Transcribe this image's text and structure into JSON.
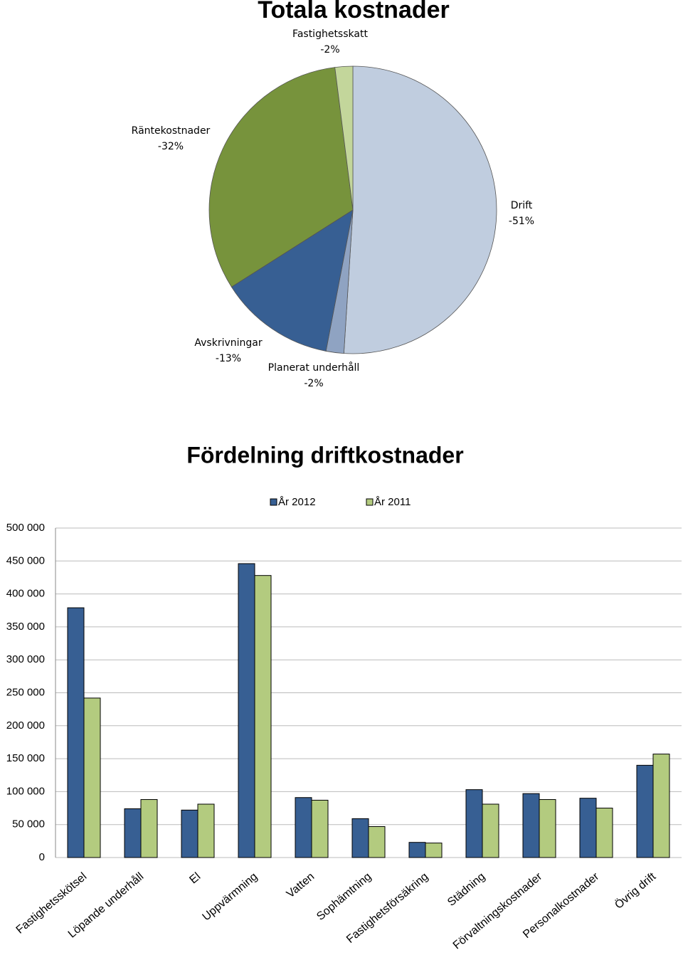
{
  "chart_data": [
    {
      "type": "pie",
      "title": "Totala kostnader",
      "categories": [
        "Drift",
        "Planerat underhåll",
        "Avskrivningar",
        "Räntekostnader",
        "Fastighetsskatt"
      ],
      "values": [
        -51,
        -2,
        -13,
        -32,
        -2
      ],
      "value_labels": [
        "-51%",
        "-2%",
        "-13%",
        "-32%",
        "-2%"
      ],
      "colors": [
        "#c0cddf",
        "#8fa3c2",
        "#375f93",
        "#77933c",
        "#c3d69b"
      ]
    },
    {
      "type": "bar",
      "title": "Fördelning driftkostnader",
      "categories": [
        "Fastighetsskötsel",
        "Löpande underhåll",
        "El",
        "Uppvärmning",
        "Vatten",
        "Sophämtning",
        "Fastighetsförsäkring",
        "Städning",
        "Förvaltningskostnader",
        "Personalkostnader",
        "Övrig drift"
      ],
      "series": [
        {
          "name": "År 2012",
          "color": "#375f93",
          "values": [
            379000,
            74000,
            72000,
            446000,
            91000,
            59000,
            23000,
            103000,
            97000,
            90000,
            140000
          ]
        },
        {
          "name": "År 2011",
          "color": "#b3cb7f",
          "values": [
            242000,
            88000,
            81000,
            428000,
            87000,
            47000,
            22000,
            81000,
            88000,
            75000,
            157000
          ]
        }
      ],
      "ylim": [
        0,
        500000
      ],
      "yticks": [
        0,
        {
          "value": 50000,
          "label": "50 000"
        },
        {
          "value": 100000,
          "label": "100 000"
        },
        {
          "value": 150000,
          "label": "150 000"
        },
        {
          "value": 200000,
          "label": "200 000"
        },
        {
          "value": 250000,
          "label": "250 000"
        },
        {
          "value": 300000,
          "label": "300 000"
        },
        {
          "value": 350000,
          "label": "350 000"
        },
        {
          "value": 400000,
          "label": "400 000"
        },
        {
          "value": 450000,
          "label": "450 000"
        },
        {
          "value": 500000,
          "label": "500 000"
        }
      ],
      "grid": true,
      "legend": "top"
    }
  ]
}
